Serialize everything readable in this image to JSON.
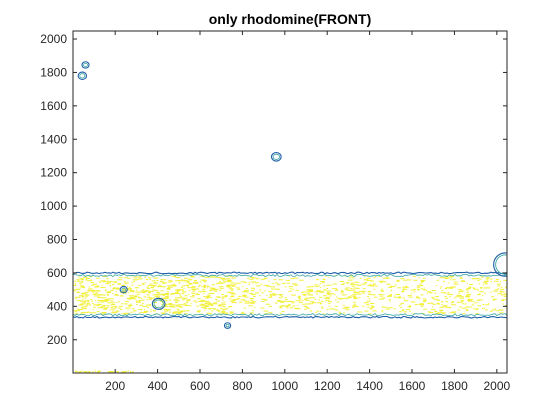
{
  "chart_data": {
    "type": "contour",
    "title": "only rhodomine(FRONT)",
    "xlabel": "",
    "ylabel": "",
    "xlim": [
      1,
      2048
    ],
    "ylim": [
      1,
      2048
    ],
    "x_ticks": [
      200,
      400,
      600,
      800,
      1000,
      1200,
      1400,
      1600,
      1800,
      2000
    ],
    "y_ticks": [
      200,
      400,
      600,
      800,
      1000,
      1200,
      1400,
      1600,
      1800,
      2000
    ],
    "grid": false,
    "legend": "none",
    "colors": {
      "contour_low": "#1f5fa8",
      "contour_mid": "#3aa6a0",
      "contour_high": "#f2ef3a",
      "axes": "#262626"
    },
    "band": {
      "y_min": 335,
      "y_max": 600,
      "x_min": 1,
      "x_max": 2048
    },
    "features": [
      {
        "type": "spot",
        "x": 45,
        "y": 1780,
        "r": 15
      },
      {
        "type": "spot",
        "x": 60,
        "y": 1845,
        "r": 12
      },
      {
        "type": "spot",
        "x": 960,
        "y": 1295,
        "r": 18
      },
      {
        "type": "spot",
        "x": 730,
        "y": 285,
        "r": 10
      },
      {
        "type": "spot",
        "x": 405,
        "y": 415,
        "r": 25
      },
      {
        "type": "spot",
        "x": 240,
        "y": 500,
        "r": 12
      },
      {
        "type": "ring",
        "x": 2040,
        "y": 650,
        "r": 55
      },
      {
        "type": "base_strip",
        "x_min": 10,
        "x_max": 290,
        "y": 5
      }
    ]
  }
}
